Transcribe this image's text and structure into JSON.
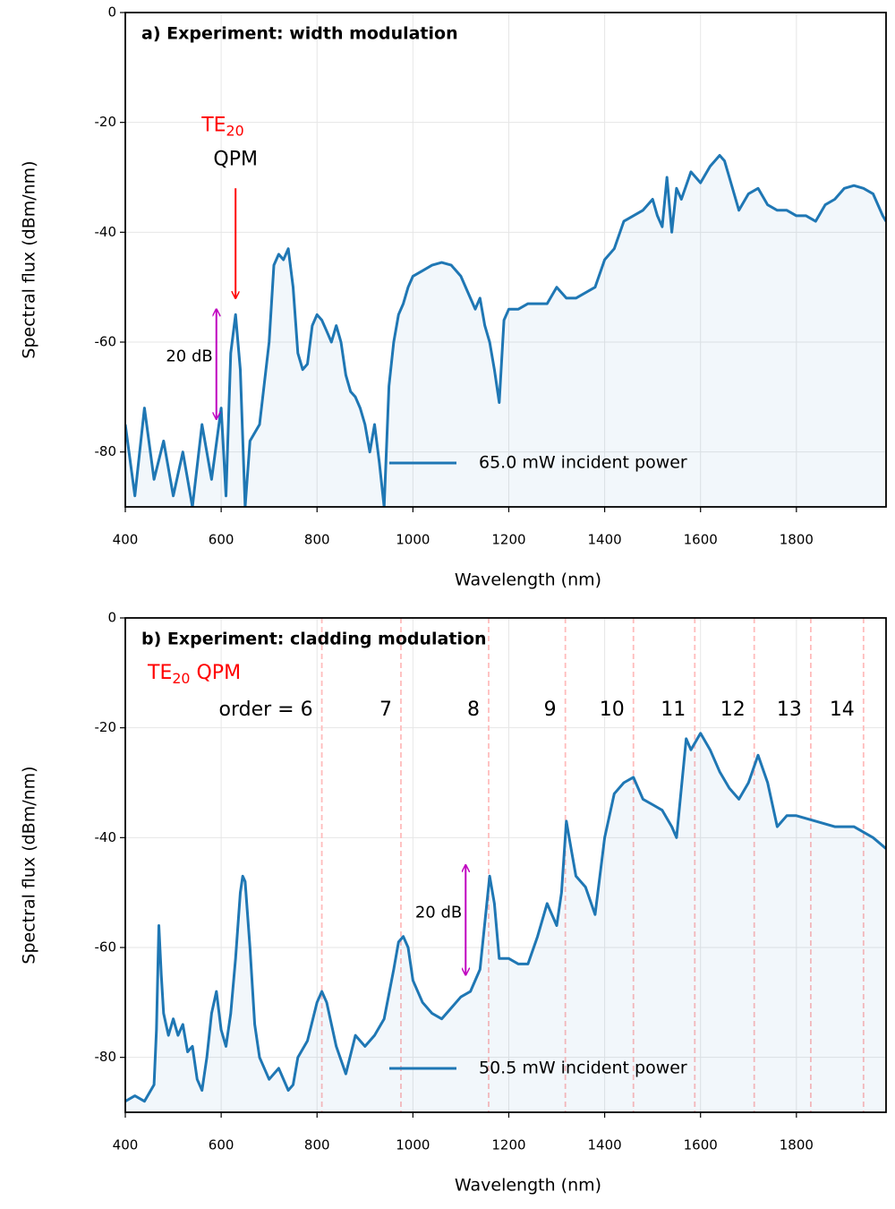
{
  "chart_data": [
    {
      "type": "line",
      "title": "a) Experiment: width modulation",
      "xlabel": "Wavelength (nm)",
      "ylabel": "Spectral flux (dBm/nm)",
      "xlim": [
        400,
        1987
      ],
      "ylim": [
        -90,
        0
      ],
      "xticks": [
        400,
        600,
        800,
        1000,
        1200,
        1400,
        1600,
        1800
      ],
      "yticks": [
        0,
        -20,
        -40,
        -60,
        -80
      ],
      "grid": true,
      "legend": "lower right",
      "series": [
        {
          "name": "65.0 mW incident power",
          "color": "#1f77b4",
          "x": [
            400,
            420,
            440,
            460,
            480,
            500,
            520,
            540,
            560,
            580,
            600,
            610,
            620,
            630,
            640,
            650,
            660,
            680,
            700,
            710,
            720,
            730,
            740,
            750,
            760,
            770,
            780,
            790,
            800,
            810,
            820,
            830,
            840,
            850,
            860,
            870,
            880,
            890,
            900,
            910,
            920,
            930,
            940,
            950,
            960,
            970,
            980,
            990,
            1000,
            1020,
            1040,
            1060,
            1080,
            1100,
            1120,
            1130,
            1140,
            1150,
            1160,
            1170,
            1180,
            1190,
            1200,
            1220,
            1240,
            1260,
            1280,
            1300,
            1320,
            1340,
            1360,
            1380,
            1400,
            1420,
            1440,
            1460,
            1480,
            1500,
            1510,
            1520,
            1530,
            1540,
            1550,
            1560,
            1580,
            1600,
            1620,
            1640,
            1650,
            1660,
            1680,
            1700,
            1720,
            1740,
            1760,
            1780,
            1800,
            1820,
            1840,
            1860,
            1880,
            1900,
            1920,
            1940,
            1960,
            1980,
            1987
          ],
          "values": [
            -75,
            -88,
            -72,
            -85,
            -78,
            -88,
            -80,
            -90,
            -75,
            -85,
            -72,
            -88,
            -62,
            -55,
            -65,
            -90,
            -78,
            -75,
            -60,
            -46,
            -44,
            -45,
            -43,
            -50,
            -62,
            -65,
            -64,
            -57,
            -55,
            -56,
            -58,
            -60,
            -57,
            -60,
            -66,
            -69,
            -70,
            -72,
            -75,
            -80,
            -75,
            -82,
            -90,
            -68,
            -60,
            -55,
            -53,
            -50,
            -48,
            -47,
            -46,
            -45.5,
            -46,
            -48,
            -52,
            -54,
            -52,
            -57,
            -60,
            -65,
            -71,
            -56,
            -54,
            -54,
            -53,
            -53,
            -53,
            -50,
            -52,
            -52,
            -51,
            -50,
            -45,
            -43,
            -38,
            -37,
            -36,
            -34,
            -37,
            -39,
            -30,
            -40,
            -32,
            -34,
            -29,
            -31,
            -28,
            -26,
            -27,
            -30,
            -36,
            -33,
            -32,
            -35,
            -36,
            -36,
            -37,
            -37,
            -38,
            -35,
            -34,
            -32,
            -31.5,
            -32,
            -33,
            -37,
            -38
          ]
        }
      ],
      "qpm_arrow": {
        "text": "TE",
        "subscript": "20",
        "text2": "QPM",
        "x": 630,
        "y": [
          -32,
          -52
        ],
        "color": "red"
      },
      "db_arrow": {
        "text": "20 dB",
        "x": 590,
        "y": [
          -54,
          -74
        ],
        "color": "#bf00bf"
      }
    },
    {
      "type": "line",
      "title": "b) Experiment: cladding modulation",
      "xlabel": "Wavelength (nm)",
      "ylabel": "Spectral flux (dBm/nm)",
      "xlim": [
        400,
        1987
      ],
      "ylim": [
        -90,
        0
      ],
      "xticks": [
        400,
        600,
        800,
        1000,
        1200,
        1400,
        1600,
        1800
      ],
      "yticks": [
        0,
        -20,
        -40,
        -60,
        -80
      ],
      "grid": true,
      "legend": "lower right",
      "series": [
        {
          "name": "50.5 mW incident power",
          "color": "#1f77b4",
          "x": [
            400,
            420,
            440,
            460,
            465,
            470,
            475,
            480,
            490,
            500,
            510,
            520,
            530,
            540,
            550,
            560,
            570,
            580,
            590,
            600,
            610,
            620,
            630,
            640,
            645,
            650,
            660,
            670,
            680,
            700,
            720,
            740,
            750,
            760,
            780,
            800,
            810,
            820,
            840,
            860,
            880,
            900,
            920,
            940,
            960,
            970,
            980,
            990,
            1000,
            1020,
            1040,
            1060,
            1080,
            1100,
            1120,
            1140,
            1160,
            1170,
            1180,
            1200,
            1220,
            1240,
            1260,
            1280,
            1300,
            1310,
            1320,
            1330,
            1340,
            1360,
            1380,
            1400,
            1420,
            1440,
            1460,
            1480,
            1500,
            1520,
            1540,
            1550,
            1570,
            1580,
            1600,
            1620,
            1640,
            1660,
            1680,
            1700,
            1720,
            1740,
            1760,
            1780,
            1800,
            1840,
            1880,
            1920,
            1960,
            1987
          ],
          "values": [
            -88,
            -87,
            -88,
            -85,
            -75,
            -56,
            -65,
            -72,
            -76,
            -73,
            -76,
            -74,
            -79,
            -78,
            -84,
            -86,
            -80,
            -72,
            -68,
            -75,
            -78,
            -72,
            -62,
            -50,
            -47,
            -48,
            -60,
            -74,
            -80,
            -84,
            -82,
            -86,
            -85,
            -80,
            -77,
            -70,
            -68,
            -70,
            -78,
            -83,
            -76,
            -78,
            -76,
            -73,
            -64,
            -59,
            -58,
            -60,
            -66,
            -70,
            -72,
            -73,
            -71,
            -69,
            -68,
            -64,
            -47,
            -52,
            -62,
            -62,
            -63,
            -63,
            -58,
            -52,
            -56,
            -50,
            -37,
            -42,
            -47,
            -49,
            -54,
            -40,
            -32,
            -30,
            -29,
            -33,
            -34,
            -35,
            -38,
            -40,
            -22,
            -24,
            -21,
            -24,
            -28,
            -31,
            -33,
            -30,
            -25,
            -30,
            -38,
            -36,
            -36,
            -37,
            -38,
            -38,
            -40,
            -42
          ]
        }
      ],
      "qpm_header": {
        "text": "TE",
        "subscript": "20",
        "text2": " QPM",
        "color": "red"
      },
      "qpm_lines": {
        "x": [
          810,
          975,
          1158,
          1318,
          1460,
          1588,
          1712,
          1830,
          1940
        ],
        "labels": [
          "order = 6",
          "7",
          "8",
          "9",
          "10",
          "11",
          "12",
          "13",
          "14"
        ],
        "color": "red"
      },
      "db_arrow": {
        "text": "20 dB",
        "x": 1110,
        "y": [
          -45,
          -65
        ],
        "color": "#bf00bf"
      }
    }
  ]
}
